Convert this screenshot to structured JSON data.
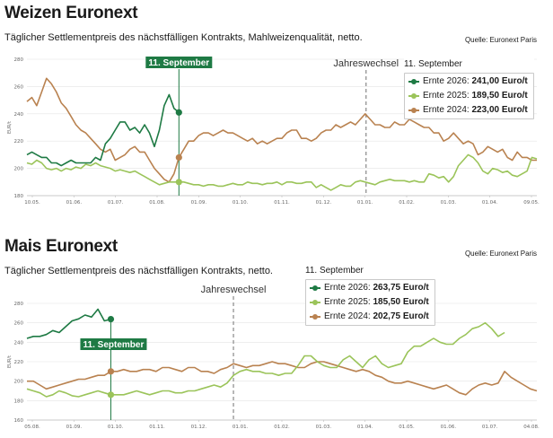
{
  "chart_data": [
    {
      "type": "line",
      "title": "Weizen Euronext",
      "subtitle": "Täglicher Settlementpreis des nächstfälligen Kontrakts, Mahlweizenqualität, netto.",
      "source": "Quelle: Euronext Paris",
      "ylabel": "EUR/t",
      "ylim": [
        180,
        280
      ],
      "yticks": [
        "180",
        "200",
        "220",
        "240",
        "260",
        "280"
      ],
      "x_ticks": [
        "10.05.",
        "01.06.",
        "01.07.",
        "01.08.",
        "01.09.",
        "01.10.",
        "01.11.",
        "01.12.",
        "01.01.",
        "01.02.",
        "01.03.",
        "01.04.",
        "09.05."
      ],
      "grid": true,
      "event_label": "Jahreswechsel",
      "marker_label": "11. September",
      "legend": {
        "header": "11. September",
        "items": [
          {
            "label": "Ernte 2026:",
            "value": "241,00 Euro/t",
            "color": "#1e7a44"
          },
          {
            "label": "Ernte 2025:",
            "value": "189,50 Euro/t",
            "color": "#9bc45a"
          },
          {
            "label": "Ernte 2024:",
            "value": "223,00 Euro/t",
            "color": "#b98250"
          }
        ]
      },
      "series": [
        {
          "name": "Ernte 2024",
          "color": "#b98250",
          "values": [
            249,
            252,
            246,
            256,
            266,
            262,
            256,
            248,
            244,
            238,
            232,
            228,
            226,
            222,
            218,
            214,
            212,
            214,
            206,
            208,
            210,
            214,
            216,
            212,
            212,
            206,
            200,
            196,
            192,
            190,
            196,
            208,
            214,
            220,
            220,
            224,
            226,
            226,
            224,
            226,
            228,
            226,
            226,
            224,
            222,
            220,
            222,
            218,
            220,
            218,
            220,
            222,
            222,
            226,
            228,
            228,
            222,
            222,
            220,
            222,
            226,
            228,
            228,
            232,
            230,
            232,
            234,
            232,
            236,
            240,
            236,
            232,
            232,
            230,
            230,
            234,
            232,
            232,
            236,
            234,
            232,
            230,
            230,
            226,
            226,
            220,
            222,
            226,
            222,
            218,
            220,
            218,
            210,
            212,
            216,
            214,
            212,
            214,
            208,
            206,
            212,
            208,
            208,
            206,
            206
          ]
        },
        {
          "name": "Ernte 2025",
          "color": "#9bc45a",
          "values": [
            204,
            203,
            206,
            204,
            200,
            199,
            200,
            198,
            200,
            199,
            201,
            200,
            203,
            202,
            204,
            202,
            201,
            200,
            198,
            199,
            198,
            197,
            198,
            196,
            194,
            192,
            190,
            188,
            189,
            190,
            190,
            190,
            190,
            189,
            188,
            188,
            187,
            188,
            188,
            187,
            187,
            188,
            189,
            188,
            188,
            190,
            189,
            189,
            188,
            189,
            189,
            190,
            188,
            190,
            190,
            189,
            189,
            190,
            190,
            186,
            188,
            186,
            184,
            186,
            188,
            187,
            187,
            190,
            191,
            190,
            189,
            188,
            190,
            191,
            192,
            191,
            191,
            191,
            190,
            191,
            190,
            190,
            196,
            195,
            193,
            194,
            190,
            194,
            202,
            206,
            210,
            208,
            204,
            198,
            196,
            200,
            199,
            197,
            198,
            195,
            194,
            196,
            198,
            208,
            207
          ]
        },
        {
          "name": "Ernte 2026",
          "color": "#1e7a44",
          "values": [
            210,
            212,
            210,
            208,
            208,
            204,
            204,
            202,
            204,
            206,
            204,
            204,
            204,
            204,
            208,
            206,
            218,
            222,
            228,
            234,
            234,
            228,
            230,
            226,
            232,
            226,
            216,
            228,
            246,
            254,
            244,
            241
          ]
        }
      ]
    },
    {
      "type": "line",
      "title": "Mais Euronext",
      "subtitle": "Täglicher Settlementpreis des nächstfälligen Kontrakts, netto.",
      "source": "Quelle: Euronext Paris",
      "ylabel": "EUR/t",
      "ylim": [
        160,
        280
      ],
      "yticks": [
        "160",
        "180",
        "200",
        "220",
        "240",
        "260",
        "280"
      ],
      "x_ticks": [
        "05.08.",
        "01.09.",
        "01.10.",
        "01.11.",
        "01.12.",
        "01.01.",
        "01.02.",
        "01.03.",
        "01.04.",
        "01.05.",
        "01.06.",
        "01.07.",
        "04.08."
      ],
      "grid": true,
      "event_label": "Jahreswechsel",
      "marker_label": "11. September",
      "legend": {
        "header": "11. September",
        "items": [
          {
            "label": "Ernte 2026:",
            "value": "263,75 Euro/t",
            "color": "#1e7a44"
          },
          {
            "label": "Ernte 2025:",
            "value": "185,50 Euro/t",
            "color": "#9bc45a"
          },
          {
            "label": "Ernte 2024:",
            "value": "202,75 Euro/t",
            "color": "#b98250"
          }
        ]
      },
      "series": [
        {
          "name": "Ernte 2024",
          "color": "#b98250",
          "values": [
            200,
            200,
            196,
            192,
            194,
            196,
            198,
            200,
            202,
            202,
            204,
            206,
            206,
            210,
            210,
            212,
            210,
            210,
            212,
            212,
            210,
            214,
            214,
            212,
            210,
            214,
            214,
            210,
            210,
            208,
            212,
            214,
            218,
            216,
            214,
            216,
            216,
            218,
            220,
            218,
            218,
            216,
            214,
            214,
            218,
            220,
            220,
            218,
            216,
            214,
            212,
            210,
            212,
            210,
            206,
            204,
            200,
            198,
            198,
            200,
            198,
            196,
            194,
            192,
            194,
            196,
            192,
            188,
            186,
            192,
            196,
            198,
            196,
            198,
            210,
            204,
            200,
            196,
            192,
            190
          ]
        },
        {
          "name": "Ernte 2025",
          "color": "#9bc45a",
          "values": [
            192,
            190,
            188,
            184,
            186,
            190,
            188,
            185,
            184,
            186,
            188,
            190,
            188,
            186,
            186,
            186,
            188,
            190,
            188,
            186,
            188,
            190,
            190,
            188,
            188,
            190,
            190,
            192,
            194,
            196,
            194,
            198,
            206,
            210,
            212,
            210,
            210,
            208,
            208,
            206,
            208,
            208,
            216,
            226,
            226,
            220,
            216,
            214,
            214,
            222,
            226,
            220,
            214,
            222,
            226,
            218,
            214,
            216,
            218,
            230,
            236,
            236,
            240,
            244,
            240,
            238,
            238,
            244,
            248,
            254,
            256,
            260,
            254,
            246,
            250
          ]
        },
        {
          "name": "Ernte 2026",
          "color": "#1e7a44",
          "values": [
            244,
            246,
            246,
            248,
            252,
            250,
            256,
            262,
            264,
            268,
            266,
            274,
            262,
            263.75
          ]
        }
      ]
    }
  ]
}
